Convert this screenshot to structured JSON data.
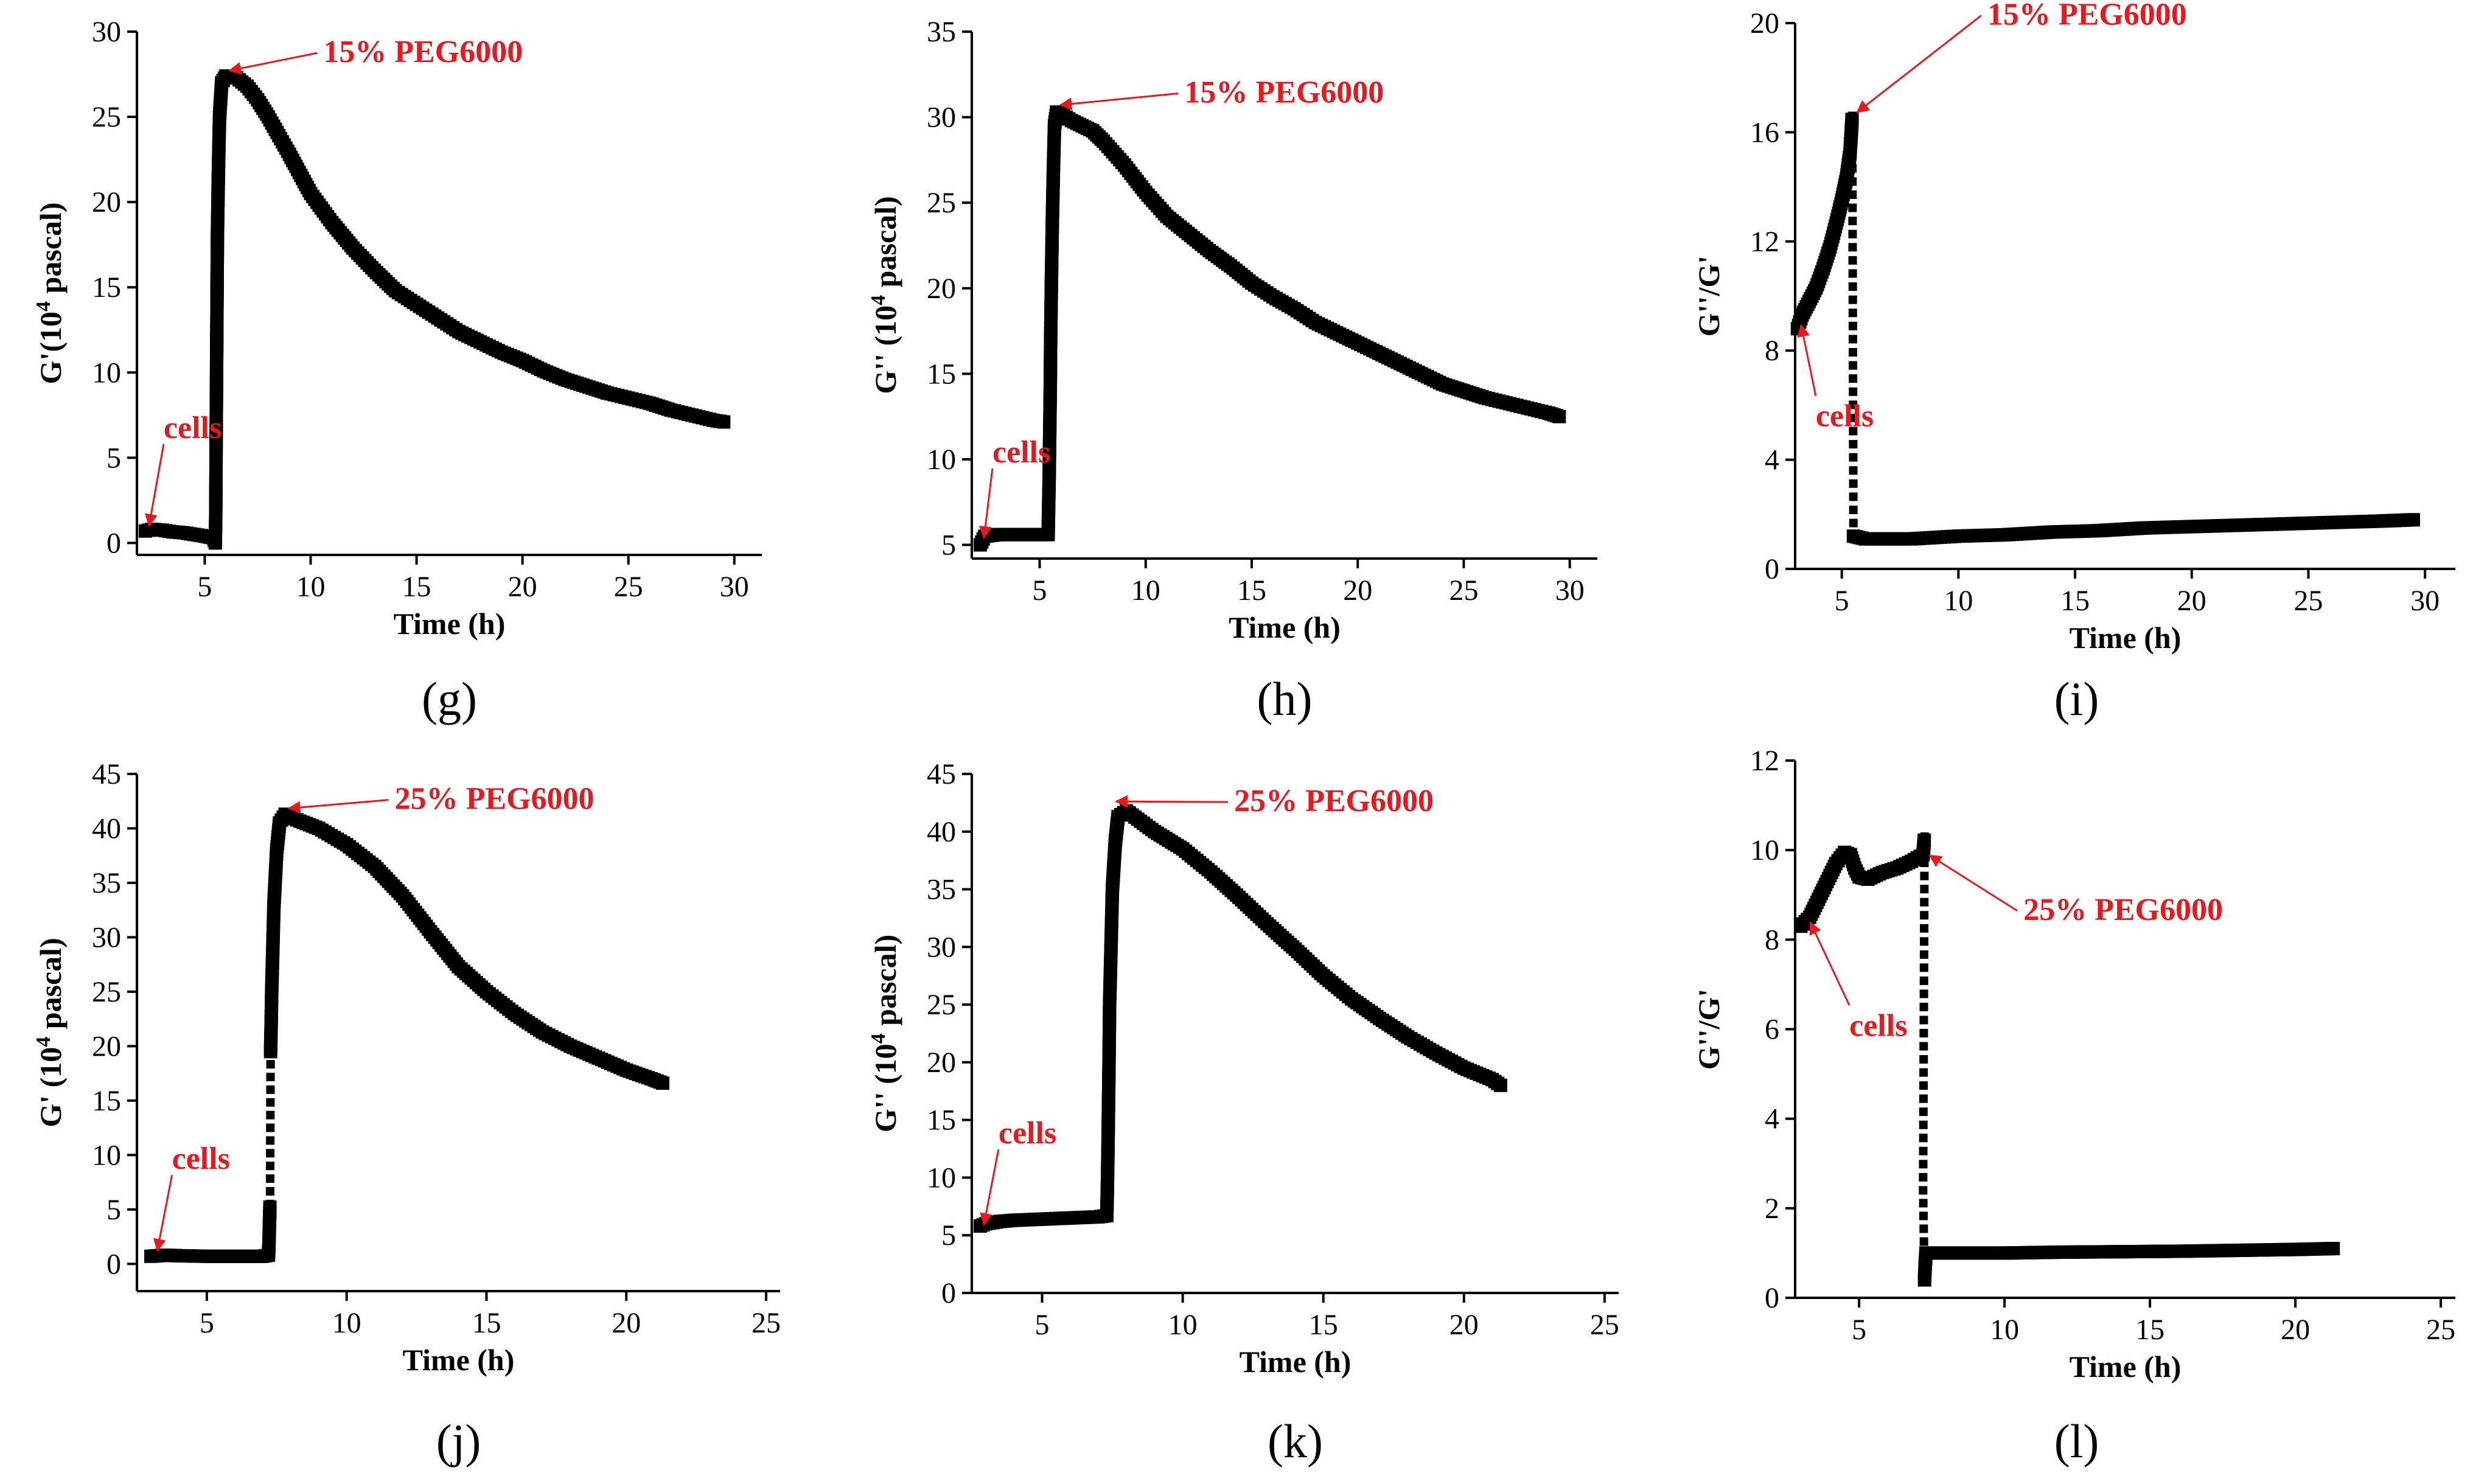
{
  "colors": {
    "data": "#000000",
    "annotation": "#e8191e"
  },
  "chart_data": [
    {
      "type": "scatter",
      "panel_label": "(g)",
      "xlabel": "Time (h)",
      "ylabel": "G'(10<sup>4</sup> pascal)",
      "ylabel_text": "G'(104 pascal)",
      "xlim": [
        1.8,
        31.3
      ],
      "ylim": [
        -0.7,
        30
      ],
      "xticks": [
        5,
        10,
        15,
        20,
        25,
        30
      ],
      "yticks": [
        0,
        5,
        10,
        15,
        20,
        25,
        30
      ],
      "series": [
        {
          "values": [
            [
              2.2,
              0.7
            ],
            [
              2.5,
              0.8
            ],
            [
              3,
              0.75
            ],
            [
              3.5,
              0.65
            ],
            [
              4,
              0.6
            ],
            [
              4.5,
              0.5
            ],
            [
              5,
              0.4
            ],
            [
              5.4,
              0.3
            ],
            [
              5.5,
              0.0
            ],
            [
              5.52,
              1.5
            ],
            [
              5.53,
              3.5
            ],
            [
              5.54,
              6
            ],
            [
              5.55,
              8
            ],
            [
              5.56,
              10
            ],
            [
              5.58,
              14
            ],
            [
              5.6,
              18
            ],
            [
              5.65,
              22
            ],
            [
              5.7,
              25
            ],
            [
              5.8,
              27
            ],
            [
              6,
              27.4
            ],
            [
              6.5,
              27.3
            ],
            [
              7,
              26.8
            ],
            [
              7.5,
              26
            ],
            [
              8,
              25
            ],
            [
              9,
              22.8
            ],
            [
              10,
              20.5
            ],
            [
              11,
              18.8
            ],
            [
              12,
              17.3
            ],
            [
              13,
              16
            ],
            [
              14,
              14.8
            ],
            [
              15,
              14
            ],
            [
              16,
              13.2
            ],
            [
              17,
              12.4
            ],
            [
              18,
              11.8
            ],
            [
              19,
              11.2
            ],
            [
              20,
              10.7
            ],
            [
              21,
              10.1
            ],
            [
              22,
              9.6
            ],
            [
              23,
              9.2
            ],
            [
              24,
              8.8
            ],
            [
              25,
              8.5
            ],
            [
              26,
              8.2
            ],
            [
              27,
              7.8
            ],
            [
              28,
              7.5
            ],
            [
              29,
              7.2
            ],
            [
              29.5,
              7.1
            ]
          ]
        }
      ],
      "annotations": [
        {
          "text": "15% PEG6000",
          "at": [
            6.0,
            27.5
          ]
        },
        {
          "text": "cells",
          "at": [
            2.2,
            0.8
          ]
        }
      ]
    },
    {
      "type": "scatter",
      "panel_label": "(h)",
      "xlabel": "Time (h)",
      "ylabel": "G'' (10<sup>4</sup> pascal)",
      "ylabel_text": "G'' (104 pascal)",
      "xlim": [
        1.8,
        31.3
      ],
      "ylim": [
        4.2,
        35
      ],
      "xticks": [
        5,
        10,
        15,
        20,
        25,
        30
      ],
      "yticks": [
        5,
        10,
        15,
        20,
        25,
        30,
        35
      ],
      "series": [
        {
          "values": [
            [
              2.2,
              5.0
            ],
            [
              2.4,
              5.5
            ],
            [
              3,
              5.6
            ],
            [
              4,
              5.6
            ],
            [
              5,
              5.6
            ],
            [
              5.4,
              5.6
            ],
            [
              5.45,
              9
            ],
            [
              5.47,
              11
            ],
            [
              5.5,
              14
            ],
            [
              5.52,
              17
            ],
            [
              5.55,
              20
            ],
            [
              5.6,
              24
            ],
            [
              5.65,
              27
            ],
            [
              5.7,
              29.5
            ],
            [
              5.8,
              30.3
            ],
            [
              6,
              30.2
            ],
            [
              6.5,
              29.8
            ],
            [
              7,
              29.5
            ],
            [
              7.5,
              29.2
            ],
            [
              8,
              28.6
            ],
            [
              9,
              27.2
            ],
            [
              10,
              25.6
            ],
            [
              11,
              24.2
            ],
            [
              12,
              23.2
            ],
            [
              13,
              22.2
            ],
            [
              14,
              21.3
            ],
            [
              15,
              20.3
            ],
            [
              16,
              19.5
            ],
            [
              17,
              18.8
            ],
            [
              18,
              18.0
            ],
            [
              19,
              17.4
            ],
            [
              20,
              16.8
            ],
            [
              21,
              16.2
            ],
            [
              22,
              15.6
            ],
            [
              23,
              15.0
            ],
            [
              24,
              14.4
            ],
            [
              25,
              14.0
            ],
            [
              26,
              13.6
            ],
            [
              27,
              13.3
            ],
            [
              28,
              13.0
            ],
            [
              29,
              12.7
            ],
            [
              29.5,
              12.5
            ]
          ]
        }
      ],
      "annotations": [
        {
          "text": "15% PEG6000",
          "at": [
            5.8,
            30.5
          ]
        },
        {
          "text": "cells",
          "at": [
            2.2,
            5.2
          ]
        }
      ]
    },
    {
      "type": "scatter",
      "panel_label": "(i)",
      "xlabel": "Time (h)",
      "ylabel": "G''/G'",
      "ylabel_text": "G''/G'",
      "xlim": [
        3,
        31.3
      ],
      "ylim": [
        0,
        20
      ],
      "xticks": [
        5,
        10,
        15,
        20,
        25,
        30
      ],
      "yticks": [
        0,
        4,
        8,
        12,
        16,
        20
      ],
      "series": [
        {
          "values": [
            [
              3.1,
              8.8
            ],
            [
              3.3,
              9.3
            ],
            [
              3.6,
              9.8
            ],
            [
              3.9,
              10.3
            ],
            [
              4.2,
              11
            ],
            [
              4.5,
              11.8
            ],
            [
              4.8,
              12.8
            ],
            [
              5.0,
              13.5
            ],
            [
              5.2,
              14.3
            ],
            [
              5.35,
              15.2
            ],
            [
              5.45,
              16.6
            ],
            [
              5.5,
              1.2
            ],
            [
              6,
              1.1
            ],
            [
              8,
              1.1
            ],
            [
              10,
              1.2
            ],
            [
              12,
              1.25
            ],
            [
              14,
              1.35
            ],
            [
              16,
              1.4
            ],
            [
              18,
              1.5
            ],
            [
              20,
              1.55
            ],
            [
              22,
              1.6
            ],
            [
              24,
              1.65
            ],
            [
              26,
              1.7
            ],
            [
              28,
              1.75
            ],
            [
              29.5,
              1.8
            ]
          ]
        }
      ],
      "annotations": [
        {
          "text": "15% PEG6000",
          "at": [
            5.5,
            16.6
          ]
        },
        {
          "text": "cells",
          "at": [
            3.1,
            8.8
          ]
        }
      ]
    },
    {
      "type": "scatter",
      "panel_label": "(j)",
      "xlabel": "Time (h)",
      "ylabel": "G' (10<sup>4</sup> pascal)",
      "ylabel_text": "G' (104 pascal)",
      "xlim": [
        2.5,
        25.5
      ],
      "ylim": [
        -2.5,
        45
      ],
      "xticks": [
        5,
        10,
        15,
        20,
        25
      ],
      "yticks": [
        0,
        5,
        10,
        15,
        20,
        25,
        30,
        35,
        40,
        45
      ],
      "series": [
        {
          "values": [
            [
              3,
              0.7
            ],
            [
              3.5,
              0.8
            ],
            [
              4,
              0.75
            ],
            [
              5,
              0.7
            ],
            [
              6,
              0.7
            ],
            [
              7,
              0.7
            ],
            [
              7.2,
              0.8
            ],
            [
              7.22,
              1.5
            ],
            [
              7.24,
              3.8
            ],
            [
              7.26,
              5.5
            ],
            [
              7.28,
              19.5
            ],
            [
              7.3,
              22
            ],
            [
              7.32,
              25
            ],
            [
              7.35,
              28
            ],
            [
              7.4,
              33
            ],
            [
              7.5,
              38
            ],
            [
              7.6,
              40.5
            ],
            [
              7.8,
              41.3
            ],
            [
              8,
              41
            ],
            [
              9,
              40
            ],
            [
              10,
              38.5
            ],
            [
              11,
              36.5
            ],
            [
              12,
              33.8
            ],
            [
              13,
              30.5
            ],
            [
              14,
              27.3
            ],
            [
              15,
              25
            ],
            [
              16,
              23
            ],
            [
              17,
              21.3
            ],
            [
              18,
              20
            ],
            [
              19,
              18.9
            ],
            [
              20,
              17.8
            ],
            [
              21,
              16.9
            ],
            [
              21.3,
              16.6
            ]
          ]
        }
      ],
      "annotations": [
        {
          "text": "25% PEG6000",
          "at": [
            7.8,
            41.5
          ]
        },
        {
          "text": "cells",
          "at": [
            3.1,
            0.9
          ]
        }
      ]
    },
    {
      "type": "scatter",
      "panel_label": "(k)",
      "xlabel": "Time (h)",
      "ylabel": "G'' (10<sup>4</sup> pascal)",
      "ylabel_text": "G'' (104 pascal)",
      "xlim": [
        2.5,
        25.5
      ],
      "ylim": [
        0,
        45
      ],
      "xticks": [
        5,
        10,
        15,
        20,
        25
      ],
      "yticks": [
        0,
        5,
        10,
        15,
        20,
        25,
        30,
        35,
        40,
        45
      ],
      "series": [
        {
          "values": [
            [
              2.8,
              5.8
            ],
            [
              3,
              6
            ],
            [
              3.5,
              6.2
            ],
            [
              4,
              6.3
            ],
            [
              5,
              6.4
            ],
            [
              6,
              6.5
            ],
            [
              7,
              6.6
            ],
            [
              7.3,
              6.7
            ],
            [
              7.32,
              9
            ],
            [
              7.34,
              12
            ],
            [
              7.36,
              16
            ],
            [
              7.38,
              20
            ],
            [
              7.4,
              25
            ],
            [
              7.45,
              30
            ],
            [
              7.5,
              35
            ],
            [
              7.6,
              39
            ],
            [
              7.7,
              41.3
            ],
            [
              8,
              41.8
            ],
            [
              9,
              40
            ],
            [
              10,
              38.5
            ],
            [
              11,
              36.5
            ],
            [
              12,
              34.3
            ],
            [
              13,
              32
            ],
            [
              14,
              29.8
            ],
            [
              15,
              27.5
            ],
            [
              16,
              25.5
            ],
            [
              17,
              23.8
            ],
            [
              18,
              22.2
            ],
            [
              19,
              20.8
            ],
            [
              20,
              19.5
            ],
            [
              21,
              18.5
            ],
            [
              21.3,
              18
            ]
          ]
        }
      ],
      "annotations": [
        {
          "text": "25% PEG6000",
          "at": [
            7.5,
            42.3
          ]
        },
        {
          "text": "cells",
          "at": [
            2.8,
            5.6
          ]
        }
      ]
    },
    {
      "type": "scatter",
      "panel_label": "(l)",
      "xlabel": "Time (h)",
      "ylabel": "G''/G'",
      "ylabel_text": "G''/G'",
      "xlim": [
        2.8,
        25.5
      ],
      "ylim": [
        0,
        12
      ],
      "xticks": [
        5,
        10,
        15,
        20,
        25
      ],
      "yticks": [
        0,
        2,
        4,
        6,
        8,
        10,
        12
      ],
      "series": [
        {
          "values": [
            [
              3,
              8.3
            ],
            [
              3.3,
              8.5
            ],
            [
              3.6,
              8.9
            ],
            [
              3.9,
              9.3
            ],
            [
              4.2,
              9.7
            ],
            [
              4.5,
              9.95
            ],
            [
              4.7,
              9.9
            ],
            [
              4.85,
              9.6
            ],
            [
              5.0,
              9.4
            ],
            [
              5.3,
              9.35
            ],
            [
              5.8,
              9.5
            ],
            [
              6.3,
              9.6
            ],
            [
              6.8,
              9.75
            ],
            [
              7.2,
              9.9
            ],
            [
              7.25,
              10.3
            ],
            [
              7.2,
              2.4
            ],
            [
              7.25,
              0.4
            ],
            [
              7.27,
              0.7
            ],
            [
              7.3,
              1.0
            ],
            [
              8,
              1.0
            ],
            [
              10,
              1.0
            ],
            [
              12,
              1.02
            ],
            [
              14,
              1.03
            ],
            [
              16,
              1.04
            ],
            [
              18,
              1.06
            ],
            [
              20,
              1.08
            ],
            [
              21.3,
              1.1
            ]
          ]
        }
      ],
      "annotations": [
        {
          "text": "25% PEG6000",
          "at": [
            7.3,
            9.8
          ]
        },
        {
          "text": "cells",
          "at": [
            3.2,
            8.3
          ]
        }
      ]
    }
  ]
}
